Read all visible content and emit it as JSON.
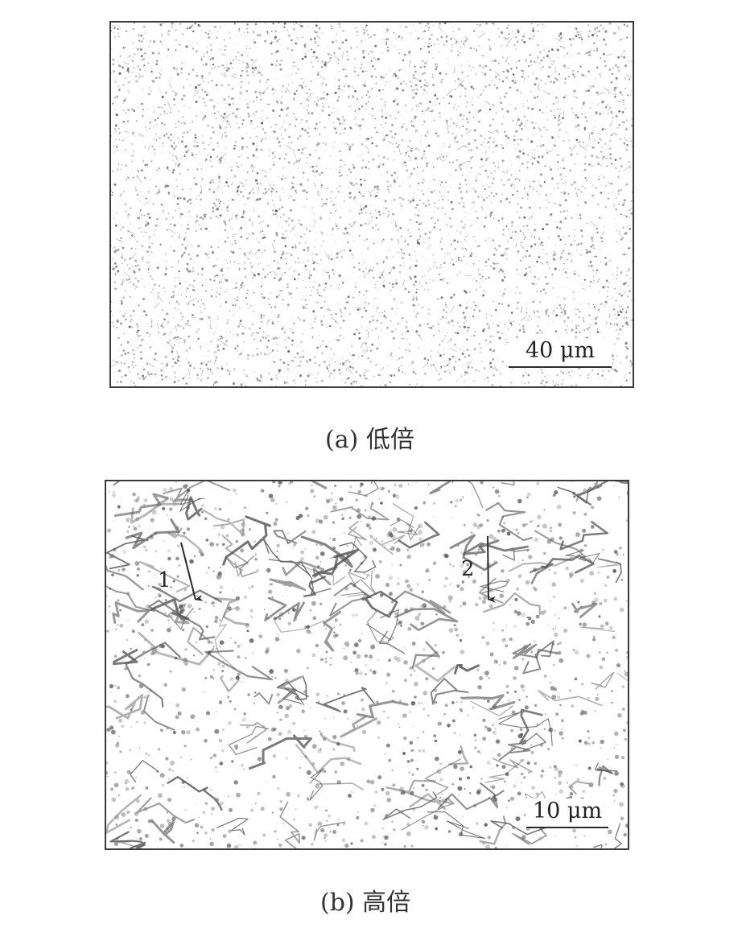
{
  "figure": {
    "panel_a": {
      "scale_bar_label": "40 μm",
      "caption": "(a) 低倍"
    },
    "panel_b": {
      "scale_bar_label": "10 μm",
      "marker_1": "1",
      "marker_2": "2",
      "caption": "(b) 高倍"
    }
  }
}
